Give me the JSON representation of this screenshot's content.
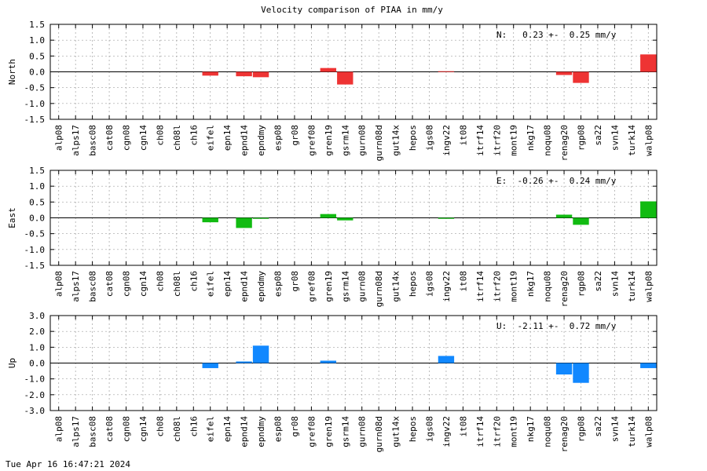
{
  "chart_data": {
    "type": "bar",
    "title": "Velocity comparison of PIAA in mm/y",
    "categories": [
      "alp08",
      "alps17",
      "basc08",
      "cat08",
      "cgn08",
      "cgn14",
      "ch08",
      "ch08l",
      "ch16",
      "eifel",
      "epn14",
      "epnd14",
      "epndmy",
      "esp08",
      "gr08",
      "gref08",
      "gren19",
      "gsrm14",
      "gurn08",
      "gurn08d",
      "gut14x",
      "hepos",
      "igs08",
      "ingv22",
      "it08",
      "itrf14",
      "itrf20",
      "mont19",
      "nkg17",
      "noqu08",
      "renag20",
      "rgp08",
      "sa22",
      "svn14",
      "turk14",
      "walp08"
    ],
    "panels": [
      {
        "ylabel": "North",
        "color": "#ee3333",
        "ylim": [
          -1.5,
          1.5
        ],
        "yticks": [
          -1.5,
          -1.0,
          -0.5,
          0.0,
          0.5,
          1.0,
          1.5
        ],
        "ytick_labels": [
          "-1.5",
          "-1.0",
          "-0.5",
          "0.0",
          "0.5",
          "1.0",
          "1.5"
        ],
        "annotation": "N:   0.23 +-  0.25 mm/y",
        "values": [
          0,
          0,
          0,
          0,
          0,
          0,
          0,
          0,
          0,
          -0.12,
          0,
          -0.14,
          -0.17,
          0,
          0,
          0,
          0.12,
          -0.4,
          0,
          0,
          0,
          0,
          0,
          0.02,
          0,
          0,
          0,
          0,
          0,
          0,
          -0.1,
          -0.35,
          0,
          0,
          0,
          0.55
        ]
      },
      {
        "ylabel": "East",
        "color": "#11bb11",
        "ylim": [
          -1.5,
          1.5
        ],
        "yticks": [
          -1.5,
          -1.0,
          -0.5,
          0.0,
          0.5,
          1.0,
          1.5
        ],
        "ytick_labels": [
          "-1.5",
          "-1.0",
          "-0.5",
          "0.0",
          "0.5",
          "1.0",
          "1.5"
        ],
        "annotation": "E:  -0.26 +-  0.24 mm/y",
        "values": [
          0,
          0,
          0,
          0,
          0,
          0,
          0,
          0,
          0,
          -0.14,
          0,
          -0.32,
          -0.03,
          0,
          0,
          0,
          0.12,
          -0.08,
          0,
          0,
          0,
          0,
          0,
          -0.03,
          0,
          0,
          0,
          0,
          0,
          0,
          0.1,
          -0.22,
          0,
          0,
          0,
          0.52
        ]
      },
      {
        "ylabel": "Up",
        "color": "#1188ff",
        "ylim": [
          -3.0,
          3.0
        ],
        "yticks": [
          -3.0,
          -2.0,
          -1.0,
          0.0,
          1.0,
          2.0,
          3.0
        ],
        "ytick_labels": [
          "-3.0",
          "-2.0",
          "-1.0",
          "0.0",
          "1.0",
          "2.0",
          "3.0"
        ],
        "annotation": "U:  -2.11 +-  0.72 mm/y",
        "values": [
          0,
          0,
          0,
          0,
          0,
          0,
          0,
          0,
          0,
          -0.32,
          0,
          0.1,
          1.1,
          0,
          0,
          0,
          0.15,
          0,
          0,
          0,
          0,
          0,
          0,
          0.45,
          0,
          0,
          0,
          0,
          0,
          0,
          -0.72,
          -1.25,
          0,
          0,
          0,
          -0.32
        ]
      }
    ],
    "grid": true
  },
  "footer": {
    "timestamp": "Tue Apr 16 16:47:21 2024"
  }
}
